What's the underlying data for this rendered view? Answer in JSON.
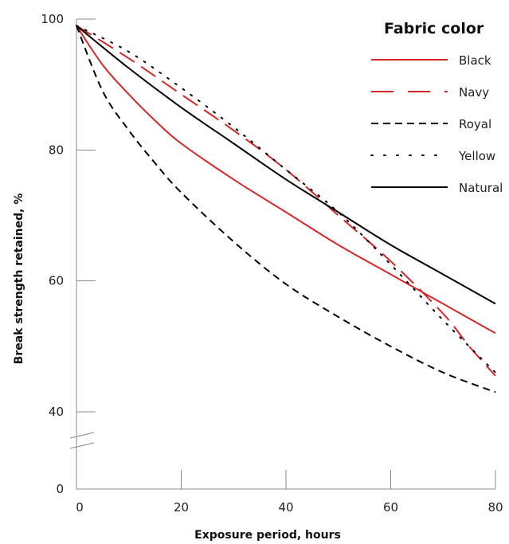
{
  "chart_data": {
    "type": "line",
    "xlabel": "Exposure period, hours",
    "ylabel": "Break strength retained, %",
    "xlim": [
      0,
      80
    ],
    "ylim": [
      0,
      100
    ],
    "axis_break": "y between 0 and 40",
    "x_ticks": [
      "0",
      "20",
      "40",
      "60",
      "80"
    ],
    "y_ticks": [
      "0",
      "40",
      "60",
      "80",
      "100"
    ],
    "grid": false,
    "legend": {
      "title": "Fabric color",
      "placement": "top-right"
    },
    "series": [
      {
        "name": "Black",
        "color": "#d62728",
        "dash": "solid",
        "x": [
          0,
          5,
          10,
          15,
          20,
          30,
          40,
          50,
          60,
          70,
          80
        ],
        "y": [
          99,
          93,
          88.5,
          84.5,
          81,
          75.5,
          70.5,
          65.5,
          61,
          56.5,
          52
        ]
      },
      {
        "name": "Navy",
        "color": "#d62728",
        "dash": "long-dash",
        "x": [
          0,
          10,
          20,
          30,
          40,
          50,
          60,
          70,
          75,
          80
        ],
        "y": [
          99,
          94,
          88.5,
          83,
          77,
          70,
          63,
          55,
          50,
          45.5
        ]
      },
      {
        "name": "Royal",
        "color": "#000000",
        "dash": "dashed",
        "x": [
          0,
          5,
          10,
          15,
          20,
          30,
          40,
          50,
          60,
          70,
          80
        ],
        "y": [
          99,
          89,
          83,
          78,
          73.5,
          66,
          59.5,
          54.5,
          50,
          46,
          43
        ]
      },
      {
        "name": "Yellow",
        "color": "#000000",
        "dash": "dotted",
        "x": [
          0,
          10,
          20,
          30,
          40,
          50,
          60,
          70,
          80
        ],
        "y": [
          99,
          95,
          89.5,
          83.5,
          77,
          70.5,
          62.5,
          54,
          46
        ]
      },
      {
        "name": "Natural",
        "color": "#000000",
        "dash": "solid",
        "x": [
          0,
          10,
          20,
          30,
          40,
          50,
          60,
          70,
          80
        ],
        "y": [
          99,
          92.5,
          86.5,
          81,
          75.5,
          70.5,
          65.5,
          61,
          56.5
        ]
      }
    ]
  }
}
